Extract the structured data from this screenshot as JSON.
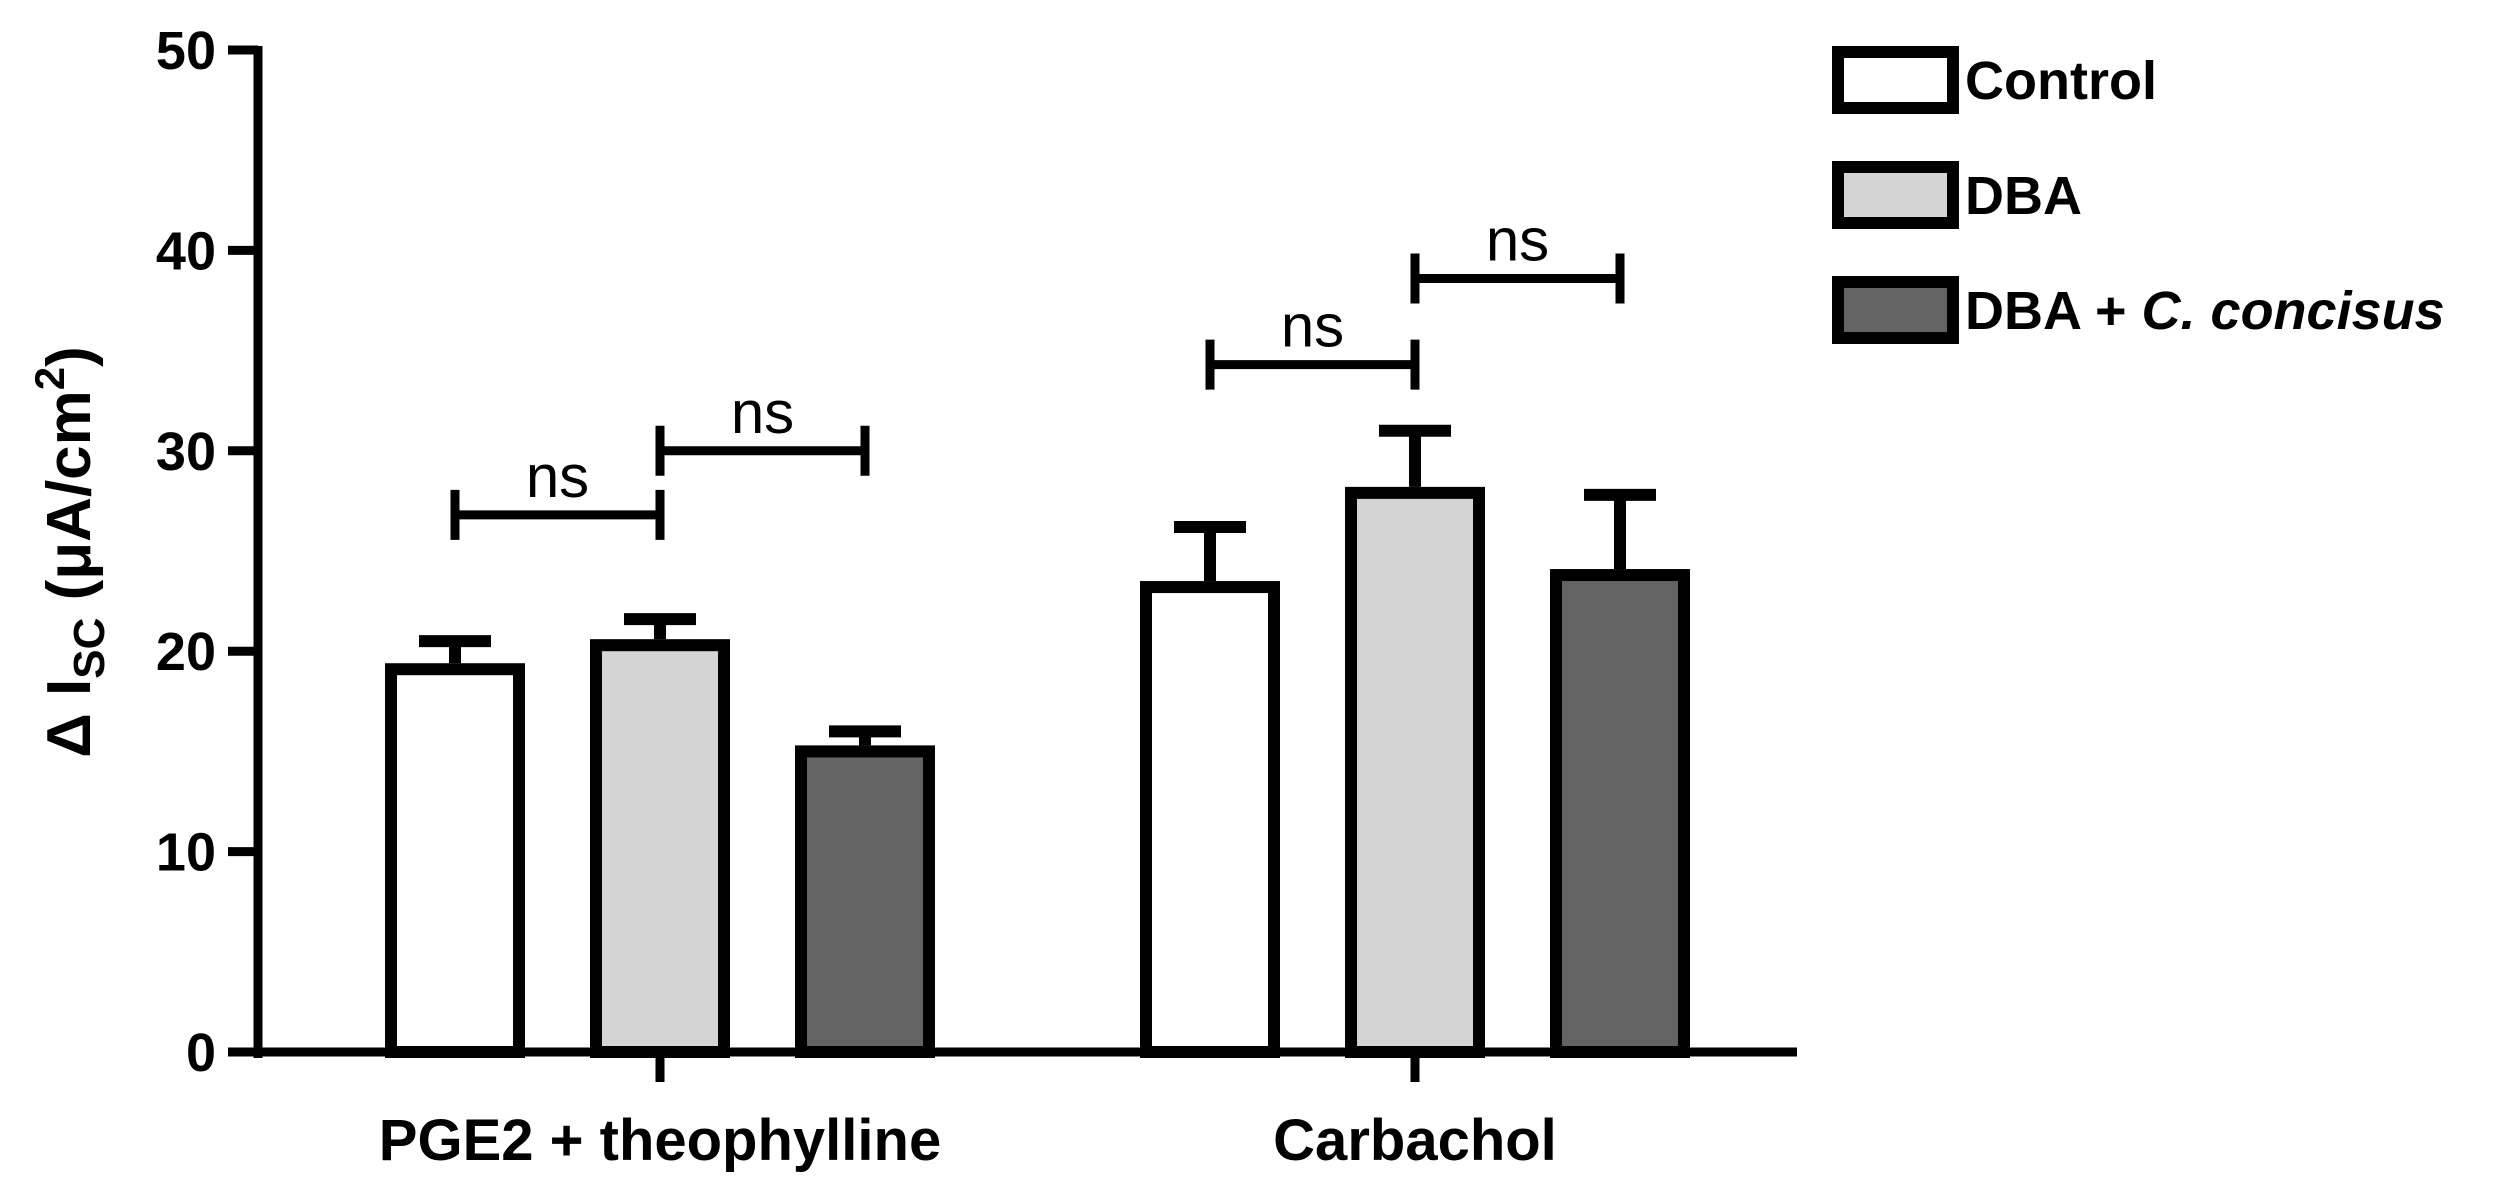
{
  "chart_data": {
    "type": "bar",
    "title": "",
    "xlabel": "",
    "ylabel": {
      "prefix": "Δ I",
      "subscript": "SC",
      "unit_open": " (μA/cm",
      "superscript": "2",
      "unit_close": ")"
    },
    "ylim": [
      0,
      50
    ],
    "yticks": [
      0,
      10,
      20,
      30,
      40,
      50
    ],
    "ytick_labels": [
      "0",
      "10",
      "20",
      "30",
      "40",
      "50"
    ],
    "categories": [
      "PGE2 + theophylline",
      "Carbachol"
    ],
    "series": [
      {
        "name": "Control",
        "legend_label": "Control",
        "color": "#ffffff",
        "values": [
          19.4,
          23.5
        ],
        "errors": [
          1.1,
          2.7
        ]
      },
      {
        "name": "DBA",
        "legend_label": "DBA",
        "color": "#d4d4d4",
        "values": [
          20.6,
          28.2
        ],
        "errors": [
          1.0,
          2.8
        ]
      },
      {
        "name": "DBA + C. concisus",
        "legend_label": "DBA + C. concisus",
        "color": "#636363",
        "values": [
          15.3,
          24.1
        ],
        "errors": [
          0.7,
          3.7
        ]
      }
    ],
    "legend": {
      "position": "top-right",
      "entries": [
        {
          "parts": [
            {
              "text": "Control",
              "italic": false
            }
          ]
        },
        {
          "parts": [
            {
              "text": "DBA",
              "italic": false
            }
          ]
        },
        {
          "parts": [
            {
              "text": "DBA + ",
              "italic": false
            },
            {
              "text": "C. concisus",
              "italic": true
            }
          ]
        }
      ]
    },
    "annotations": [
      {
        "text": "ns",
        "category": 0,
        "from_series": 0,
        "to_series": 1,
        "y": 26.8
      },
      {
        "text": "ns",
        "category": 0,
        "from_series": 1,
        "to_series": 2,
        "y": 30.0
      },
      {
        "text": "ns",
        "category": 1,
        "from_series": 0,
        "to_series": 1,
        "y": 34.3
      },
      {
        "text": "ns",
        "category": 1,
        "from_series": 1,
        "to_series": 2,
        "y": 38.6
      }
    ],
    "grid": false,
    "stroke_color": "#000000"
  }
}
